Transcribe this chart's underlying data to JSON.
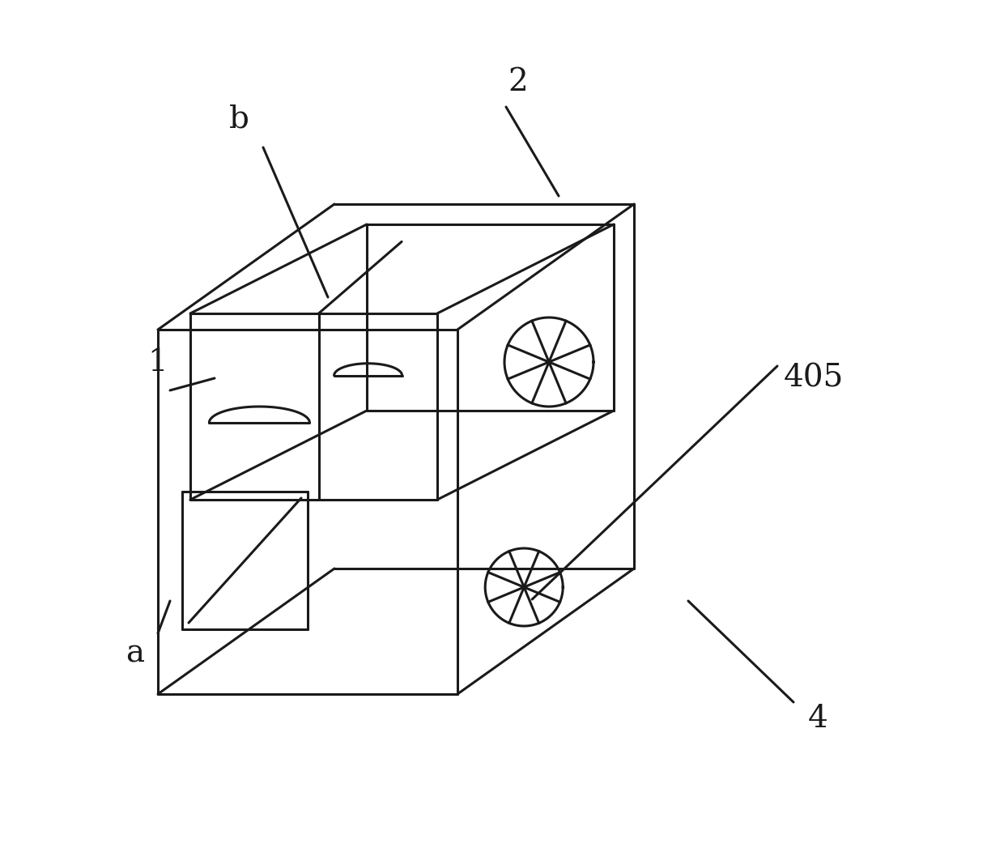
{
  "bg_color": "#ffffff",
  "line_color": "#1a1a1a",
  "line_width": 2.2,
  "fig_width": 12.4,
  "fig_height": 10.52,
  "label_fontsize": 28,
  "label_color": "#1a1a1a",
  "label_fontsize_small": 26
}
